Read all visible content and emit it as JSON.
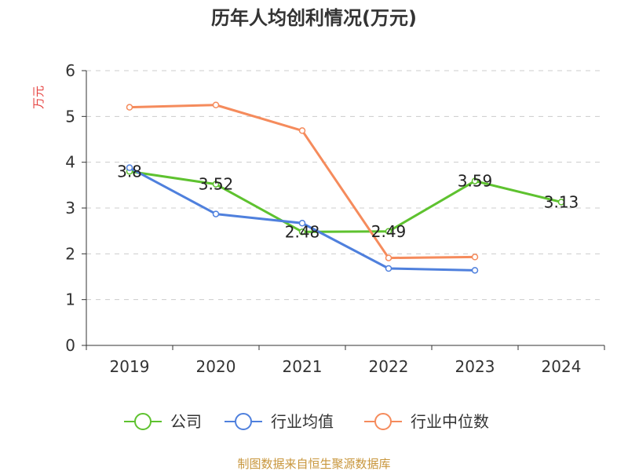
{
  "footer": "制图数据来自恒生聚源数据库",
  "colors": {
    "axis": "#333333",
    "grid": "#cccccc",
    "axis_label": "#e64340",
    "footer": "#c8963c"
  },
  "chart_data": {
    "type": "line",
    "title": "历年人均创利情况(万元)",
    "ylabel": "万元",
    "categories": [
      "2019",
      "2020",
      "2021",
      "2022",
      "2023",
      "2024"
    ],
    "ylim": [
      0,
      6
    ],
    "yticks": [
      0,
      1,
      2,
      3,
      4,
      5,
      6
    ],
    "grid": true,
    "legend": "bottom",
    "series": [
      {
        "name": "公司",
        "color": "#5ec22f",
        "values": [
          3.8,
          3.52,
          2.48,
          2.49,
          3.59,
          3.13
        ],
        "show_labels": true
      },
      {
        "name": "行业均值",
        "color": "#4f80dd",
        "values": [
          3.88,
          2.87,
          2.67,
          1.68,
          1.64,
          null
        ],
        "show_labels": false
      },
      {
        "name": "行业中位数",
        "color": "#f58b5c",
        "values": [
          5.2,
          5.25,
          4.69,
          1.91,
          1.93,
          null
        ],
        "show_labels": false
      }
    ]
  }
}
